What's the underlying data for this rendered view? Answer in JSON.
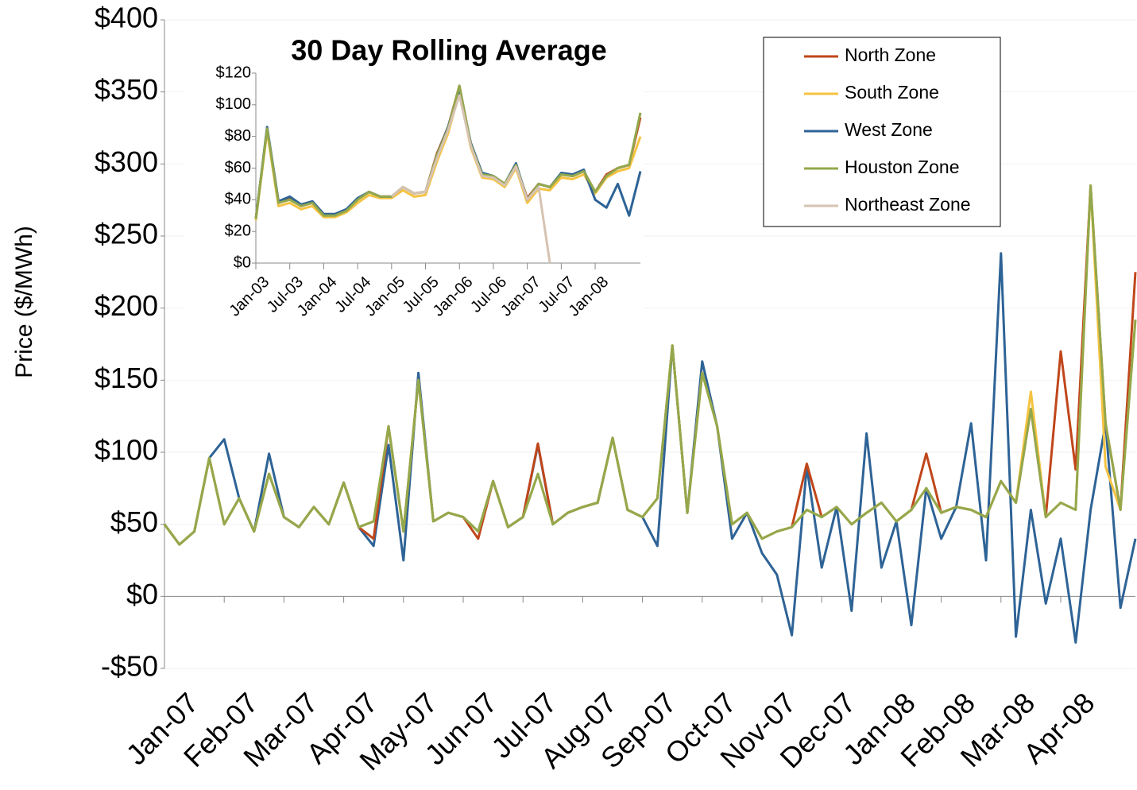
{
  "chart_data": [
    {
      "type": "line",
      "y_label": "Price ($/MWh)",
      "categories": [
        "Jan-07",
        null,
        null,
        null,
        "Feb-07",
        null,
        null,
        null,
        "Mar-07",
        null,
        null,
        null,
        "Apr-07",
        null,
        null,
        null,
        "May-07",
        null,
        null,
        null,
        "Jun-07",
        null,
        null,
        null,
        "Jul-07",
        null,
        null,
        null,
        "Aug-07",
        null,
        null,
        null,
        "Sep-07",
        null,
        null,
        null,
        "Oct-07",
        null,
        null,
        null,
        "Nov-07",
        null,
        null,
        null,
        "Dec-07",
        null,
        null,
        null,
        "Jan-08",
        null,
        null,
        null,
        "Feb-08",
        null,
        null,
        null,
        "Mar-08",
        null,
        null,
        null,
        "Apr-08",
        null,
        null,
        null,
        null,
        null
      ],
      "ylim": [
        -50,
        400
      ],
      "yticks": [
        {
          "value": -50,
          "label": "-$50"
        },
        {
          "value": 0,
          "label": "$0"
        },
        {
          "value": 50,
          "label": "$50"
        },
        {
          "value": 100,
          "label": "$100"
        },
        {
          "value": 150,
          "label": "$150"
        },
        {
          "value": 200,
          "label": "$200"
        },
        {
          "value": 250,
          "label": "$250"
        },
        {
          "value": 300,
          "label": "$300"
        },
        {
          "value": 350,
          "label": "$350"
        },
        {
          "value": 400,
          "label": "$400"
        }
      ],
      "grid": true,
      "series": [
        {
          "name": "West Zone",
          "color": "#2e6396",
          "values": [
            50,
            36,
            45,
            96,
            109,
            68,
            45,
            99,
            55,
            48,
            62,
            50,
            79,
            48,
            35,
            105,
            25,
            155,
            52,
            58,
            55,
            45,
            80,
            48,
            55,
            105,
            50,
            58,
            62,
            65,
            110,
            60,
            55,
            35,
            174,
            58,
            163,
            118,
            40,
            58,
            30,
            15,
            -27,
            90,
            20,
            62,
            -10,
            113,
            20,
            52,
            -20,
            75,
            40,
            62,
            120,
            25,
            238,
            -28,
            60,
            -5,
            40,
            -32,
            60,
            120,
            -8,
            40
          ]
        },
        {
          "name": "North Zone",
          "color": "#c0461b",
          "values": [
            50,
            36,
            45,
            96,
            50,
            68,
            45,
            85,
            55,
            48,
            62,
            50,
            79,
            48,
            40,
            118,
            45,
            150,
            52,
            58,
            55,
            40,
            80,
            48,
            55,
            106,
            50,
            58,
            62,
            65,
            110,
            60,
            55,
            68,
            174,
            58,
            155,
            118,
            50,
            58,
            40,
            45,
            48,
            92,
            55,
            62,
            50,
            58,
            65,
            52,
            60,
            99,
            58,
            62,
            60,
            55,
            80,
            65,
            130,
            55,
            170,
            88,
            285,
            120,
            60,
            225
          ]
        },
        {
          "name": "South Zone",
          "color": "#f5c342",
          "values": [
            50,
            36,
            45,
            96,
            50,
            68,
            45,
            85,
            55,
            48,
            62,
            50,
            79,
            48,
            52,
            118,
            45,
            150,
            52,
            58,
            55,
            45,
            80,
            48,
            55,
            85,
            50,
            58,
            62,
            65,
            110,
            60,
            55,
            68,
            174,
            58,
            155,
            118,
            50,
            58,
            40,
            45,
            48,
            60,
            55,
            62,
            50,
            58,
            65,
            52,
            60,
            75,
            58,
            62,
            60,
            55,
            80,
            65,
            142,
            55,
            65,
            60,
            285,
            90,
            60,
            192
          ]
        },
        {
          "name": "Houston Zone",
          "color": "#93a84c",
          "values": [
            50,
            36,
            45,
            96,
            50,
            68,
            45,
            85,
            55,
            48,
            62,
            50,
            79,
            48,
            52,
            118,
            45,
            150,
            52,
            58,
            55,
            45,
            80,
            48,
            55,
            85,
            50,
            58,
            62,
            65,
            110,
            60,
            55,
            68,
            174,
            58,
            155,
            118,
            50,
            58,
            40,
            45,
            48,
            60,
            55,
            62,
            50,
            58,
            65,
            52,
            60,
            75,
            58,
            62,
            60,
            55,
            80,
            65,
            130,
            55,
            65,
            60,
            285,
            120,
            60,
            192
          ]
        }
      ]
    },
    {
      "type": "line",
      "title": "30 Day Rolling Average",
      "categories": [
        "Jan-03",
        null,
        null,
        "Jul-03",
        null,
        null,
        "Jan-04",
        null,
        null,
        "Jul-04",
        null,
        null,
        "Jan-05",
        null,
        null,
        "Jul-05",
        null,
        null,
        "Jan-06",
        null,
        null,
        "Jul-06",
        null,
        null,
        "Jan-07",
        null,
        null,
        "Jul-07",
        null,
        null,
        "Jan-08",
        null,
        null,
        null,
        null
      ],
      "ylim": [
        0,
        120
      ],
      "yticks": [
        {
          "value": 0,
          "label": "$0"
        },
        {
          "value": 20,
          "label": "$20"
        },
        {
          "value": 40,
          "label": "$40"
        },
        {
          "value": 60,
          "label": "$60"
        },
        {
          "value": 80,
          "label": "$80"
        },
        {
          "value": 100,
          "label": "$100"
        },
        {
          "value": 120,
          "label": "$120"
        }
      ],
      "legend": "top-right",
      "series": [
        {
          "name": "North Zone",
          "color": "#c0461b",
          "values": [
            28,
            85,
            39,
            41,
            36,
            38,
            30,
            30,
            33,
            40,
            45,
            42,
            42,
            48,
            44,
            45,
            69,
            86,
            112,
            75,
            56,
            55,
            50,
            62,
            41,
            50,
            48,
            56,
            55,
            58,
            45,
            56,
            60,
            62,
            92
          ]
        },
        {
          "name": "South Zone",
          "color": "#f5c342",
          "values": [
            27,
            83,
            36,
            38,
            34,
            36,
            29,
            29,
            32,
            38,
            43,
            41,
            41,
            46,
            42,
            43,
            64,
            82,
            108,
            73,
            54,
            53,
            48,
            60,
            38,
            47,
            46,
            54,
            53,
            56,
            44,
            54,
            58,
            60,
            80
          ]
        },
        {
          "name": "West Zone",
          "color": "#2e6396",
          "values": [
            28,
            86,
            39,
            42,
            37,
            39,
            31,
            31,
            34,
            41,
            45,
            42,
            42,
            48,
            44,
            45,
            68,
            86,
            110,
            76,
            57,
            55,
            50,
            63,
            40,
            50,
            48,
            57,
            56,
            59,
            40,
            35,
            50,
            30,
            58
          ]
        },
        {
          "name": "Houston Zone",
          "color": "#93a84c",
          "values": [
            28,
            85,
            38,
            40,
            36,
            38,
            30,
            30,
            33,
            40,
            45,
            42,
            42,
            48,
            44,
            45,
            68,
            85,
            112,
            75,
            56,
            55,
            50,
            62,
            40,
            50,
            48,
            56,
            55,
            58,
            45,
            55,
            60,
            62,
            95
          ]
        },
        {
          "name": "Northeast Zone",
          "color": "#d6c3b2",
          "values": [
            null,
            null,
            null,
            null,
            null,
            null,
            null,
            null,
            null,
            null,
            null,
            null,
            42,
            48,
            44,
            45,
            66,
            84,
            106,
            74,
            55,
            54,
            49,
            61,
            40,
            48,
            0,
            null,
            null,
            null,
            null,
            null,
            null,
            null,
            null
          ]
        }
      ]
    }
  ]
}
